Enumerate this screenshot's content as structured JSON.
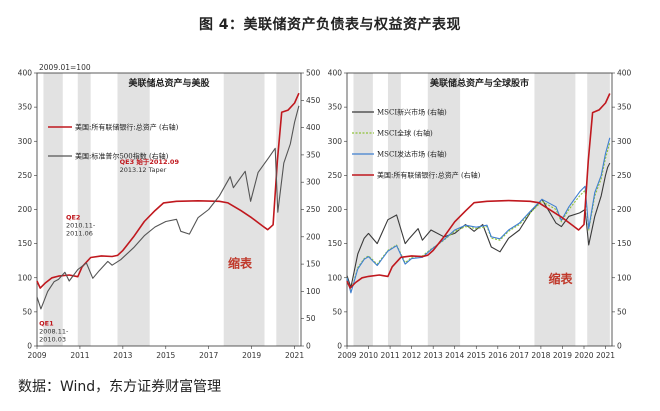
{
  "figure_title": "图 4：美联储资产负债表与权益资产表现",
  "source": "数据：Wind，东方证券财富管理",
  "colors": {
    "red": "#c0181e",
    "gray": "#555555",
    "dark": "#3a3a3a",
    "green": "#8fc33a",
    "blue": "#3f7fd0",
    "shade": "#e2e2e2"
  },
  "chart_data": [
    {
      "type": "line",
      "title": "美联储总资产与美股",
      "index_note": "2009.01=100",
      "x_range": [
        2009,
        2021.3
      ],
      "x_ticks": [
        2009,
        2011,
        2013,
        2015,
        2017,
        2019,
        2021
      ],
      "ylim_left": [
        0,
        400
      ],
      "yticks_left": [
        0,
        50,
        100,
        150,
        200,
        250,
        300,
        350,
        400
      ],
      "ylim_right": [
        0,
        500
      ],
      "yticks_right": [
        0,
        50,
        100,
        150,
        200,
        250,
        300,
        350,
        400,
        450,
        500
      ],
      "shaded_periods": [
        [
          2009.3,
          2010.2
        ],
        [
          2010.9,
          2011.5
        ],
        [
          2012.75,
          2014.25
        ],
        [
          2017.7,
          2019.6
        ],
        [
          2020.15,
          2021.2
        ]
      ],
      "series": [
        {
          "name": "美国:所有联储银行:总资产 (右轴)",
          "color": "red",
          "axis": "right",
          "points": [
            [
              2009.0,
              119
            ],
            [
              2009.15,
              106
            ],
            [
              2009.4,
              116
            ],
            [
              2009.7,
              125
            ],
            [
              2010.0,
              128
            ],
            [
              2010.5,
              130
            ],
            [
              2010.9,
              127
            ],
            [
              2011.1,
              145
            ],
            [
              2011.5,
              162
            ],
            [
              2012.0,
              165
            ],
            [
              2012.5,
              164
            ],
            [
              2012.75,
              166
            ],
            [
              2013.0,
              175
            ],
            [
              2013.5,
              200
            ],
            [
              2014.0,
              228
            ],
            [
              2014.5,
              248
            ],
            [
              2014.9,
              262
            ],
            [
              2015.5,
              265
            ],
            [
              2016.5,
              266
            ],
            [
              2017.5,
              265
            ],
            [
              2017.9,
              262
            ],
            [
              2018.5,
              248
            ],
            [
              2019.0,
              235
            ],
            [
              2019.5,
              220
            ],
            [
              2019.75,
              213
            ],
            [
              2020.0,
              222
            ],
            [
              2020.2,
              340
            ],
            [
              2020.4,
              428
            ],
            [
              2020.7,
              432
            ],
            [
              2021.0,
              445
            ],
            [
              2021.2,
              463
            ]
          ]
        },
        {
          "name": "美国:标准普尔500指数 (右轴)",
          "color": "gray",
          "axis": "right",
          "points": [
            [
              2009.0,
              90
            ],
            [
              2009.18,
              68
            ],
            [
              2009.5,
              100
            ],
            [
              2009.8,
              118
            ],
            [
              2010.0,
              122
            ],
            [
              2010.3,
              135
            ],
            [
              2010.5,
              119
            ],
            [
              2010.9,
              140
            ],
            [
              2011.3,
              152
            ],
            [
              2011.6,
              124
            ],
            [
              2011.9,
              138
            ],
            [
              2012.3,
              155
            ],
            [
              2012.5,
              148
            ],
            [
              2012.9,
              158
            ],
            [
              2013.5,
              180
            ],
            [
              2014.0,
              202
            ],
            [
              2014.5,
              218
            ],
            [
              2015.0,
              228
            ],
            [
              2015.5,
              232
            ],
            [
              2015.7,
              210
            ],
            [
              2016.1,
              205
            ],
            [
              2016.5,
              235
            ],
            [
              2017.0,
              250
            ],
            [
              2017.5,
              275
            ],
            [
              2018.0,
              310
            ],
            [
              2018.15,
              290
            ],
            [
              2018.7,
              320
            ],
            [
              2018.95,
              265
            ],
            [
              2019.3,
              318
            ],
            [
              2019.8,
              345
            ],
            [
              2020.1,
              362
            ],
            [
              2020.22,
              245
            ],
            [
              2020.5,
              335
            ],
            [
              2020.8,
              370
            ],
            [
              2021.0,
              410
            ],
            [
              2021.2,
              440
            ]
          ]
        }
      ],
      "annotations": [
        {
          "lines": [
            "QE1",
            "2008.11-",
            "2010.03"
          ],
          "x": 2009.1,
          "y": 30
        },
        {
          "lines": [
            "QE2",
            "2010.11-",
            "2011.06"
          ],
          "x": 2010.35,
          "y": 185
        },
        {
          "lines": [
            "QE3 始于2012.09",
            "2013.12 Taper"
          ],
          "x": 2012.85,
          "y": 267
        }
      ],
      "taper_label": {
        "text": "缩表",
        "x": 2017.9,
        "y": 115
      }
    },
    {
      "type": "line",
      "title": "美联储总资产与全球股市",
      "x_range": [
        2009,
        2021.3
      ],
      "x_ticks": [
        2009,
        2010,
        2011,
        2012,
        2013,
        2014,
        2015,
        2016,
        2017,
        2018,
        2019,
        2020,
        2021
      ],
      "ylim_left": [
        0,
        400
      ],
      "yticks_left": [
        0,
        50,
        100,
        150,
        200,
        250,
        300,
        350,
        400
      ],
      "ylim_right": [
        0,
        400
      ],
      "yticks_right": [
        0,
        50,
        100,
        150,
        200,
        250,
        300,
        350,
        400
      ],
      "shaded_periods": [
        [
          2009.3,
          2010.2
        ],
        [
          2010.9,
          2011.5
        ],
        [
          2012.75,
          2014.25
        ],
        [
          2017.7,
          2019.6
        ],
        [
          2020.15,
          2021.2
        ]
      ],
      "series": [
        {
          "name": "MSCI新兴市场 (右轴)",
          "color": "dark",
          "axis": "right",
          "points": [
            [
              2009.0,
              103
            ],
            [
              2009.18,
              86
            ],
            [
              2009.5,
              135
            ],
            [
              2009.8,
              158
            ],
            [
              2010.0,
              165
            ],
            [
              2010.4,
              150
            ],
            [
              2010.9,
              185
            ],
            [
              2011.3,
              192
            ],
            [
              2011.7,
              150
            ],
            [
              2011.9,
              158
            ],
            [
              2012.3,
              172
            ],
            [
              2012.5,
              155
            ],
            [
              2012.9,
              170
            ],
            [
              2013.5,
              160
            ],
            [
              2014.0,
              165
            ],
            [
              2014.5,
              178
            ],
            [
              2014.9,
              168
            ],
            [
              2015.3,
              178
            ],
            [
              2015.7,
              145
            ],
            [
              2016.1,
              138
            ],
            [
              2016.5,
              158
            ],
            [
              2017.0,
              170
            ],
            [
              2017.5,
              195
            ],
            [
              2018.05,
              215
            ],
            [
              2018.7,
              180
            ],
            [
              2018.95,
              175
            ],
            [
              2019.3,
              190
            ],
            [
              2019.8,
              195
            ],
            [
              2020.05,
              200
            ],
            [
              2020.22,
              148
            ],
            [
              2020.5,
              190
            ],
            [
              2020.8,
              220
            ],
            [
              2021.0,
              250
            ],
            [
              2021.1,
              262
            ],
            [
              2021.2,
              268
            ]
          ]
        },
        {
          "name": "MSCI全球 (右轴)",
          "color": "green",
          "axis": "right",
          "points": [
            [
              2009.0,
              100
            ],
            [
              2009.18,
              80
            ],
            [
              2009.5,
              115
            ],
            [
              2009.8,
              128
            ],
            [
              2010.0,
              132
            ],
            [
              2010.4,
              120
            ],
            [
              2010.9,
              140
            ],
            [
              2011.3,
              148
            ],
            [
              2011.7,
              122
            ],
            [
              2012.0,
              130
            ],
            [
              2012.5,
              132
            ],
            [
              2012.9,
              142
            ],
            [
              2013.5,
              155
            ],
            [
              2014.0,
              168
            ],
            [
              2014.5,
              175
            ],
            [
              2015.0,
              172
            ],
            [
              2015.5,
              175
            ],
            [
              2015.7,
              158
            ],
            [
              2016.1,
              155
            ],
            [
              2016.5,
              168
            ],
            [
              2017.0,
              178
            ],
            [
              2017.5,
              195
            ],
            [
              2018.05,
              212
            ],
            [
              2018.7,
              200
            ],
            [
              2018.95,
              182
            ],
            [
              2019.3,
              200
            ],
            [
              2019.8,
              220
            ],
            [
              2020.05,
              228
            ],
            [
              2020.22,
              170
            ],
            [
              2020.5,
              220
            ],
            [
              2020.8,
              245
            ],
            [
              2021.0,
              275
            ],
            [
              2021.2,
              298
            ]
          ]
        },
        {
          "name": "MSCI发达市场 (右轴)",
          "color": "blue",
          "axis": "right",
          "points": [
            [
              2009.0,
              100
            ],
            [
              2009.18,
              78
            ],
            [
              2009.5,
              113
            ],
            [
              2009.8,
              127
            ],
            [
              2010.0,
              131
            ],
            [
              2010.4,
              118
            ],
            [
              2010.9,
              139
            ],
            [
              2011.3,
              147
            ],
            [
              2011.7,
              120
            ],
            [
              2012.0,
              128
            ],
            [
              2012.5,
              130
            ],
            [
              2012.9,
              141
            ],
            [
              2013.5,
              156
            ],
            [
              2014.0,
              170
            ],
            [
              2014.5,
              177
            ],
            [
              2015.0,
              174
            ],
            [
              2015.5,
              177
            ],
            [
              2015.7,
              160
            ],
            [
              2016.1,
              157
            ],
            [
              2016.5,
              170
            ],
            [
              2017.0,
              180
            ],
            [
              2017.5,
              197
            ],
            [
              2018.05,
              215
            ],
            [
              2018.7,
              204
            ],
            [
              2018.95,
              184
            ],
            [
              2019.3,
              204
            ],
            [
              2019.8,
              226
            ],
            [
              2020.05,
              234
            ],
            [
              2020.22,
              172
            ],
            [
              2020.5,
              225
            ],
            [
              2020.8,
              250
            ],
            [
              2021.0,
              282
            ],
            [
              2021.2,
              305
            ]
          ]
        },
        {
          "name": "美国:所有联储银行:总资产 (右轴)",
          "color": "red",
          "axis": "right",
          "points": [
            [
              2009.0,
              95
            ],
            [
              2009.15,
              85
            ],
            [
              2009.4,
              93
            ],
            [
              2009.7,
              100
            ],
            [
              2010.0,
              102
            ],
            [
              2010.5,
              104
            ],
            [
              2010.9,
              102
            ],
            [
              2011.1,
              116
            ],
            [
              2011.5,
              130
            ],
            [
              2012.0,
              132
            ],
            [
              2012.5,
              131
            ],
            [
              2012.75,
              133
            ],
            [
              2013.0,
              140
            ],
            [
              2013.5,
              160
            ],
            [
              2014.0,
              182
            ],
            [
              2014.5,
              198
            ],
            [
              2014.9,
              210
            ],
            [
              2015.5,
              212
            ],
            [
              2016.5,
              213
            ],
            [
              2017.5,
              212
            ],
            [
              2017.9,
              210
            ],
            [
              2018.5,
              198
            ],
            [
              2019.0,
              188
            ],
            [
              2019.5,
              176
            ],
            [
              2019.75,
              170
            ],
            [
              2020.0,
              178
            ],
            [
              2020.2,
              272
            ],
            [
              2020.4,
              342
            ],
            [
              2020.7,
              346
            ],
            [
              2021.0,
              356
            ],
            [
              2021.2,
              370
            ]
          ]
        }
      ],
      "taper_label": {
        "text": "缩表",
        "x": 2018.35,
        "y": 92
      }
    }
  ]
}
